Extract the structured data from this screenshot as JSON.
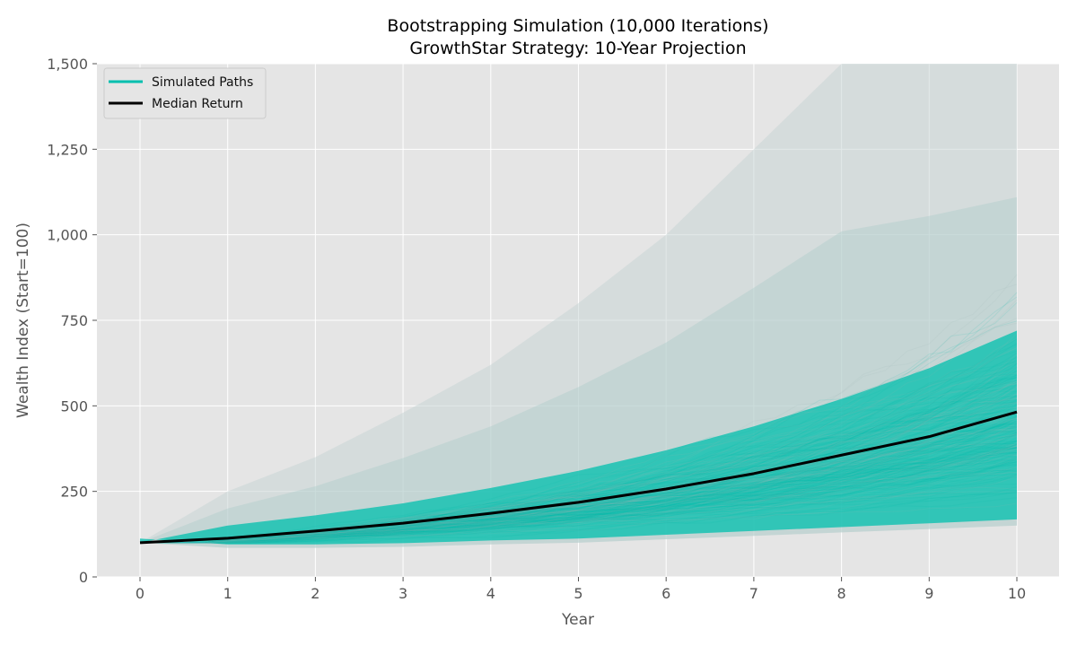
{
  "chart_data": {
    "type": "line",
    "title": "Bootstrapping Simulation (10,000 Iterations)",
    "subtitle": "GrowthStar Strategy: 10-Year Projection",
    "xlabel": "Year",
    "ylabel": "Wealth Index (Start=100)",
    "xlim": [
      -0.5,
      10.5
    ],
    "ylim": [
      0,
      1500
    ],
    "x_ticks": [
      "0",
      "1",
      "2",
      "3",
      "4",
      "5",
      "6",
      "7",
      "8",
      "9",
      "10"
    ],
    "y_ticks": [
      "0",
      "250",
      "500",
      "750",
      "1,000",
      "1,250",
      "1,500"
    ],
    "grid": true,
    "legend_position": "top-left",
    "x": [
      0,
      1,
      2,
      3,
      4,
      5,
      6,
      7,
      8,
      9,
      10
    ],
    "series": [
      {
        "name": "Simulated Paths",
        "color": "#00bfae",
        "range_low": [
          100,
          85,
          85,
          88,
          95,
          100,
          110,
          120,
          130,
          140,
          150
        ],
        "dense_high": [
          100,
          150,
          180,
          215,
          260,
          310,
          370,
          440,
          520,
          610,
          720
        ],
        "range_high": [
          100,
          250,
          350,
          480,
          620,
          800,
          1000,
          1250,
          1500,
          1500,
          1500
        ]
      },
      {
        "name": "Median Return",
        "color": "#000000",
        "values": [
          100,
          113,
          134,
          157,
          186,
          218,
          257,
          302,
          356,
          410,
          482
        ]
      }
    ]
  }
}
